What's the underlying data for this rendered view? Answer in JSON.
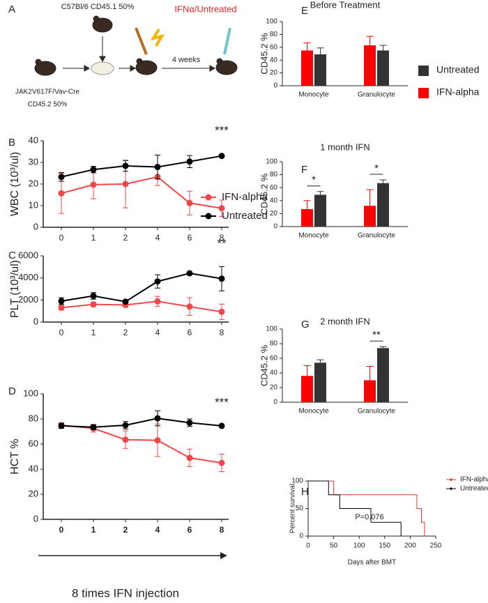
{
  "panel_a": {
    "panel": "A",
    "donor": "C57Bl/6 CD45.1 50%",
    "treatment": "IFNα/Untreated",
    "duration": "4 weeks",
    "recipient": "JAK2V617F/Vav-Cre",
    "recipient_share": "CD45.2 50%"
  },
  "chart_data": [
    {
      "type": "line",
      "panel": "B",
      "ylabel": "WBC (10³/ul)",
      "categories": [
        "0",
        "1",
        "2",
        "4",
        "6",
        "8"
      ],
      "ylim": [
        0,
        40
      ],
      "yticks": [
        0,
        10,
        20,
        30,
        40
      ],
      "annotation": "***",
      "series": [
        {
          "name": "IFN-alpha",
          "color": "#f04848",
          "values": [
            15.7,
            19.7,
            20,
            23.3,
            11.2,
            8.8
          ],
          "errors": [
            9.3,
            6.5,
            11,
            4,
            5.5,
            3.8
          ]
        },
        {
          "name": "Untreated",
          "color": "#000000",
          "values": [
            23.3,
            26.7,
            28.4,
            27.9,
            30.4,
            33
          ],
          "errors": [
            2,
            1.5,
            2.5,
            5.5,
            2.8,
            0.3
          ]
        }
      ]
    },
    {
      "type": "line",
      "panel": "C",
      "ylabel": "PLT (10³/ul)",
      "categories": [
        "0",
        "1",
        "2",
        "4",
        "6",
        "8"
      ],
      "ylim": [
        0,
        6000
      ],
      "yticks": [
        0,
        2000,
        4000,
        6000
      ],
      "annotation": "**",
      "series": [
        {
          "color": "#f04848",
          "values": [
            1300,
            1600,
            1550,
            1880,
            1400,
            930
          ],
          "errors": [
            200,
            200,
            200,
            450,
            800,
            700
          ]
        },
        {
          "color": "#000000",
          "values": [
            1900,
            2370,
            1850,
            3680,
            4420,
            3930
          ],
          "errors": [
            300,
            300,
            150,
            600,
            50,
            1100
          ]
        }
      ]
    },
    {
      "type": "line",
      "panel": "D",
      "ylabel": "HCT %",
      "xlabel": "8 times IFN injection",
      "categories": [
        "0",
        "1",
        "2",
        "4",
        "6",
        "8"
      ],
      "ylim": [
        0,
        100
      ],
      "yticks": [
        0,
        20,
        40,
        60,
        80,
        100
      ],
      "annotation": "***",
      "series": [
        {
          "color": "#f04848",
          "values": [
            75,
            72.5,
            63.5,
            63,
            49,
            45
          ],
          "errors": [
            2,
            3,
            7,
            13,
            7,
            7
          ]
        },
        {
          "color": "#000000",
          "values": [
            74.5,
            73.5,
            75,
            80.5,
            77,
            74.5
          ],
          "errors": [
            2,
            2,
            3,
            6,
            3,
            0.5
          ]
        }
      ]
    },
    {
      "type": "bar",
      "panel": "E",
      "title": "Before Treatment",
      "ylabel": "CD45.2 %",
      "categories": [
        "Monocyte",
        "Granulocyte"
      ],
      "ylim": [
        0,
        100
      ],
      "yticks": [
        0,
        20,
        40,
        60,
        80,
        100
      ],
      "series": [
        {
          "name": "IFN-alpha",
          "color": "#ff0000",
          "values": [
            55,
            63
          ],
          "errors": [
            12,
            14
          ]
        },
        {
          "name": "Untreated",
          "color": "#333333",
          "values": [
            49,
            55
          ],
          "errors": [
            10,
            8
          ]
        }
      ]
    },
    {
      "type": "bar",
      "panel": "F",
      "title": "1 month IFN",
      "ylabel": "CD45.2 %",
      "categories": [
        "Monocyte",
        "Granulocyte"
      ],
      "ylim": [
        0,
        100
      ],
      "yticks": [
        0,
        20,
        40,
        60,
        80,
        100
      ],
      "annotations": [
        "*",
        "*"
      ],
      "series": [
        {
          "color": "#ff0000",
          "values": [
            27,
            32
          ],
          "errors": [
            13,
            25
          ]
        },
        {
          "color": "#333333",
          "values": [
            49,
            67
          ],
          "errors": [
            5,
            5
          ]
        }
      ]
    },
    {
      "type": "bar",
      "panel": "G",
      "title": "2 month IFN",
      "ylabel": "CD45.2 %",
      "categories": [
        "Monocyte",
        "Granulocyte"
      ],
      "ylim": [
        0,
        100
      ],
      "yticks": [
        0,
        20,
        40,
        60,
        80,
        100
      ],
      "annotations": [
        null,
        "**"
      ],
      "series": [
        {
          "color": "#ff0000",
          "values": [
            36,
            30
          ],
          "errors": [
            14,
            19
          ]
        },
        {
          "color": "#333333",
          "values": [
            54,
            74
          ],
          "errors": [
            4,
            2
          ]
        }
      ]
    },
    {
      "type": "step",
      "panel": "H",
      "xlabel": "Days after BMT",
      "ylabel": "Percent survival",
      "xlim": [
        0,
        250
      ],
      "xticks": [
        0,
        50,
        100,
        150,
        200,
        250
      ],
      "ylim": [
        0,
        100
      ],
      "yticks": [
        0,
        50,
        100
      ],
      "annotation": "P=0.076",
      "series": [
        {
          "name": "IFN-alpha",
          "color": "#e8332c",
          "x": [
            0,
            50,
            213,
            222,
            228
          ],
          "values": [
            100,
            75,
            50,
            25,
            0
          ]
        },
        {
          "name": "Untreated",
          "color": "#000000",
          "x": [
            0,
            40,
            62,
            123,
            182
          ],
          "values": [
            100,
            75,
            50,
            25,
            0
          ]
        }
      ]
    }
  ]
}
